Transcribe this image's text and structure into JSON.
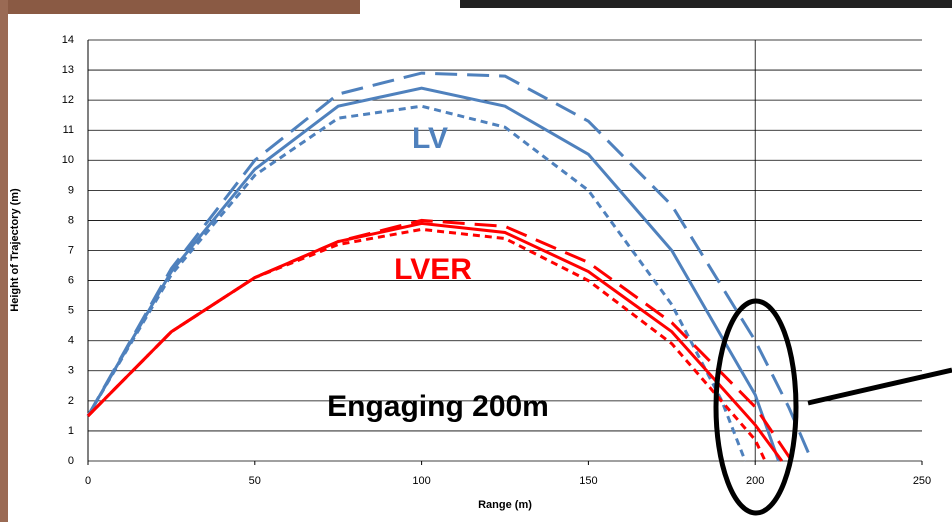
{
  "chart_data": {
    "type": "line",
    "x_label": "Range (m)",
    "y_label": "Height of Trajectory (m)",
    "xlim": [
      0,
      250
    ],
    "xticks": [
      0,
      50,
      100,
      150,
      200,
      250
    ],
    "ylim": [
      0,
      14
    ],
    "yticks": [
      0,
      1,
      2,
      3,
      4,
      5,
      6,
      7,
      8,
      9,
      10,
      11,
      12,
      13,
      14
    ],
    "grid": true,
    "reference_x": 200,
    "series": [
      {
        "color": "#4f81bd",
        "dash": "solid",
        "x": [
          0,
          25,
          50,
          75,
          100,
          125,
          150,
          175,
          200,
          207
        ],
        "values": [
          1.5,
          6.3,
          9.7,
          11.8,
          12.4,
          11.8,
          10.2,
          7,
          2.2,
          0
        ]
      },
      {
        "color": "#4f81bd",
        "dash": "dashed",
        "x": [
          0,
          25,
          50,
          75,
          100,
          125,
          150,
          175,
          200,
          210,
          217
        ],
        "values": [
          1.5,
          6.4,
          10,
          12.2,
          12.9,
          12.8,
          11.3,
          8.5,
          4,
          1.8,
          0
        ]
      },
      {
        "color": "#4f81bd",
        "dash": "dotted",
        "x": [
          0,
          25,
          50,
          75,
          100,
          125,
          150,
          175,
          190,
          197
        ],
        "values": [
          1.5,
          6.2,
          9.5,
          11.4,
          11.8,
          11.1,
          9,
          5.2,
          2,
          0
        ]
      },
      {
        "color": "#ff0000",
        "dash": "solid",
        "x": [
          0,
          25,
          50,
          75,
          100,
          125,
          150,
          175,
          200,
          208
        ],
        "values": [
          1.5,
          4.3,
          6.1,
          7.3,
          7.9,
          7.6,
          6.3,
          4.3,
          1.2,
          0
        ]
      },
      {
        "color": "#ff0000",
        "dash": "dashed",
        "x": [
          0,
          25,
          50,
          75,
          100,
          125,
          150,
          175,
          200,
          211
        ],
        "values": [
          1.5,
          4.3,
          6.1,
          7.3,
          8,
          7.8,
          6.6,
          4.6,
          1.8,
          0
        ]
      },
      {
        "color": "#ff0000",
        "dash": "dotted",
        "x": [
          0,
          25,
          50,
          75,
          100,
          125,
          150,
          175,
          200,
          203
        ],
        "values": [
          1.5,
          4.3,
          6.1,
          7.2,
          7.7,
          7.4,
          6,
          3.9,
          0.7,
          0
        ]
      }
    ],
    "annotations": [
      "LV",
      "LVER",
      "Engaging 200m"
    ]
  }
}
